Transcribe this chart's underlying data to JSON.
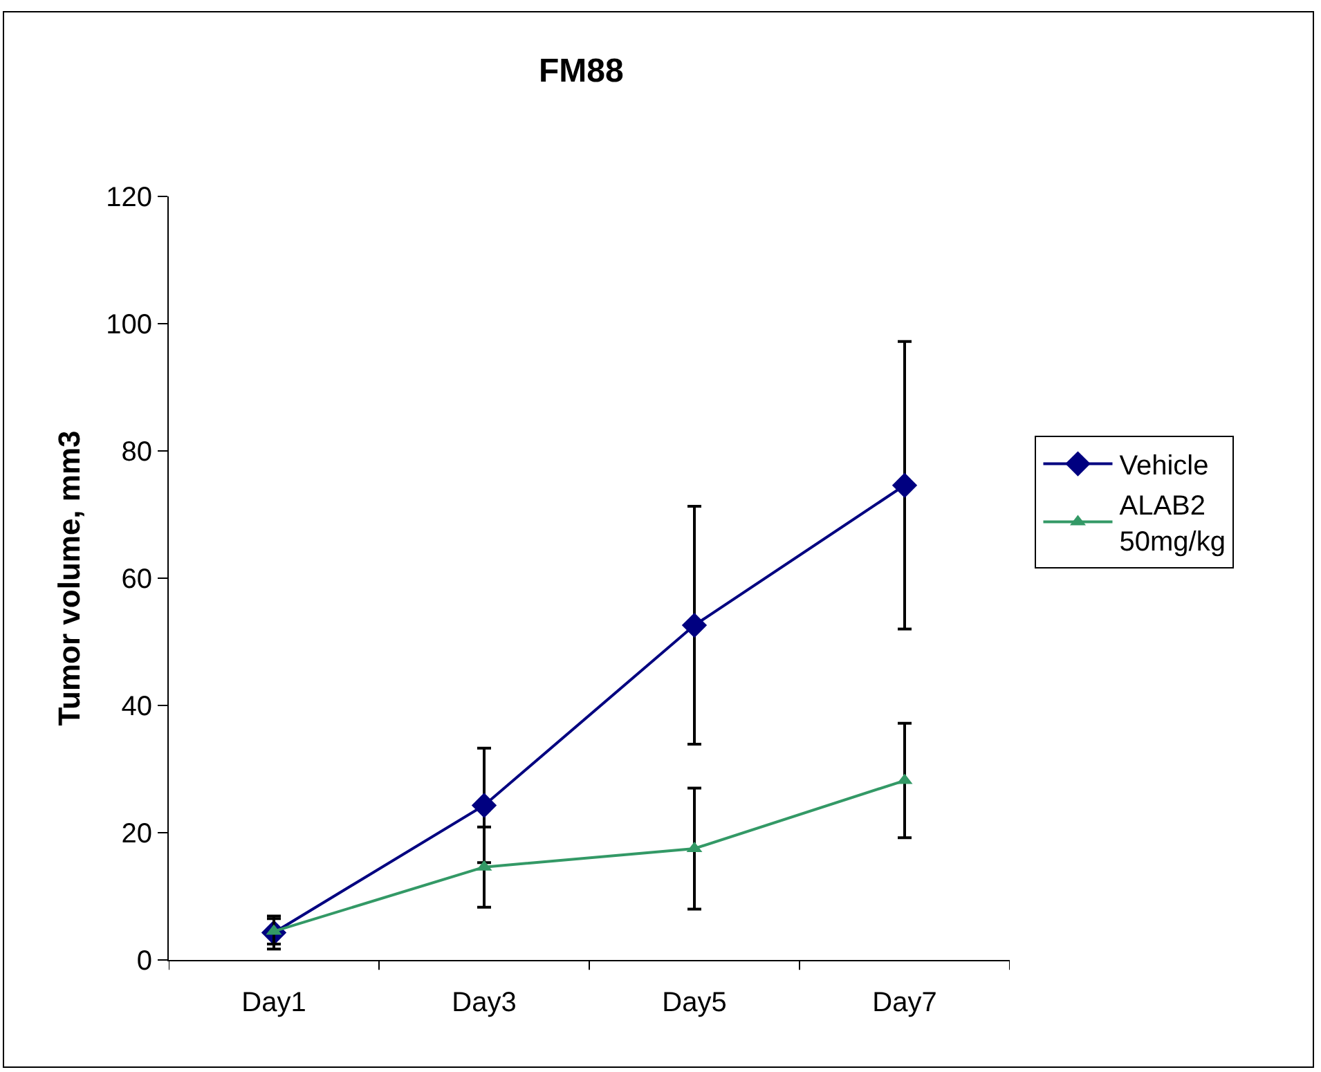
{
  "chart_data": {
    "type": "line",
    "title": "FM88",
    "ylabel": "Tumor volume, mm3",
    "categories": [
      "Day1",
      "Day3",
      "Day5",
      "Day7"
    ],
    "series": [
      {
        "name": "Vehicle",
        "color": "#000080",
        "marker": "diamond",
        "values": [
          4.3,
          24.3,
          52.6,
          74.6
        ],
        "errors": [
          2.6,
          9,
          18.7,
          22.6
        ]
      },
      {
        "name": "ALAB2 50mg/kg",
        "color": "#339966",
        "marker": "triangle",
        "values": [
          4.5,
          14.6,
          17.5,
          28.2
        ],
        "errors": [
          2,
          6.3,
          9.5,
          9
        ]
      }
    ],
    "ylim": [
      0,
      120
    ],
    "yticks": [
      0,
      20,
      40,
      60,
      80,
      100,
      120
    ],
    "grid": false,
    "legend": "right",
    "line_style": "solid"
  }
}
